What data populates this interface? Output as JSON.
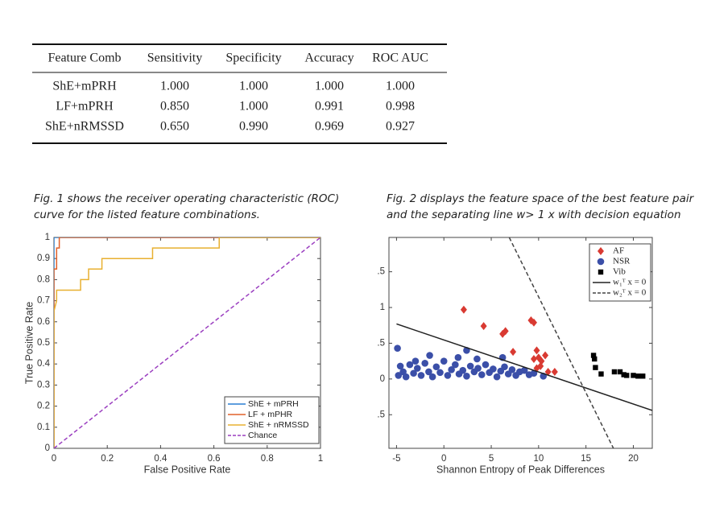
{
  "table": {
    "header": [
      "Feature Comb",
      "Sensitivity",
      "Specificity",
      "Accuracy",
      "ROC AUC"
    ],
    "rows": [
      [
        "ShE+mPRH",
        "1.000",
        "1.000",
        "1.000",
        "1.000"
      ],
      [
        "LF+mPRH",
        "0.850",
        "1.000",
        "0.991",
        "0.998"
      ],
      [
        "ShE+nRMSSD",
        "0.650",
        "0.990",
        "0.969",
        "0.927"
      ]
    ]
  },
  "captions": [
    [
      "Fig. 1 shows the receiver operating characteristic (ROC)",
      "curve for the listed feature combinations."
    ],
    [
      "Fig. 2 displays the feature space of the best feature pair",
      "and the separating line w> 1 x with decision equation"
    ]
  ],
  "chart_data": [
    {
      "type": "line",
      "xlabel": "False Positive Rate",
      "ylabel": "True Positive Rate",
      "xlim": [
        0,
        1
      ],
      "ylim": [
        0,
        1
      ],
      "xticks": [
        0,
        0.2,
        0.4,
        0.6,
        0.8,
        1
      ],
      "yticks": [
        0,
        0.1,
        0.2,
        0.3,
        0.4,
        0.5,
        0.6,
        0.7,
        0.8,
        0.9,
        1
      ],
      "legend": "lower right",
      "series": [
        {
          "name": "ShE + mPRH",
          "color": "#2a7fd4",
          "style": "solid",
          "x": [
            0,
            0,
            0,
            1
          ],
          "y": [
            0,
            0.9,
            1,
            1
          ]
        },
        {
          "name": "LF + mPHR",
          "color": "#e0602a",
          "style": "solid",
          "x": [
            0,
            0,
            0.01,
            0.01,
            0.02,
            0.02,
            1
          ],
          "y": [
            0,
            0.85,
            0.85,
            0.95,
            0.95,
            1,
            1
          ]
        },
        {
          "name": "ShE + nRMSSD",
          "color": "#e8b030",
          "style": "solid",
          "x": [
            0,
            0,
            0.01,
            0.01,
            0.1,
            0.1,
            0.13,
            0.13,
            0.18,
            0.18,
            0.37,
            0.37,
            0.62,
            0.62,
            1
          ],
          "y": [
            0,
            0.65,
            0.7,
            0.75,
            0.75,
            0.8,
            0.8,
            0.85,
            0.85,
            0.9,
            0.9,
            0.95,
            0.95,
            1,
            1
          ]
        },
        {
          "name": "Chance",
          "color": "#9b3fc0",
          "style": "dashed",
          "x": [
            0,
            1
          ],
          "y": [
            0,
            1
          ]
        }
      ]
    },
    {
      "type": "scatter",
      "xlabel": "Shannon Entropy of Peak Differences",
      "xlim": [
        -5.8,
        22
      ],
      "ylim": [
        -0.97,
        1.98
      ],
      "xticks": [
        -5,
        0,
        5,
        10,
        15,
        20
      ],
      "yticks": [
        {
          "value": -0.5,
          "label": ".5"
        },
        0,
        {
          "value": 0.5,
          "label": ".5"
        },
        1,
        {
          "value": 1.5,
          "label": ".5"
        }
      ],
      "legend": "upper right",
      "series": [
        {
          "name": "AF",
          "color": "#d93a32",
          "marker": "diamond",
          "x": [
            2.1,
            4.2,
            6.2,
            6.5,
            7.3,
            9.2,
            9.5,
            9.5,
            9.8,
            10,
            10.3,
            10.7,
            10.2,
            9.8,
            11,
            11.7
          ],
          "y": [
            0.97,
            0.74,
            0.63,
            0.67,
            0.38,
            0.82,
            0.79,
            0.28,
            0.4,
            0.3,
            0.25,
            0.33,
            0.18,
            0.15,
            0.1,
            0.1
          ]
        },
        {
          "name": "NSR",
          "color": "#3b4fa8",
          "marker": "circle",
          "x": [
            -4.8,
            -4.6,
            -4.3,
            -4,
            -3.6,
            -3.2,
            -2.8,
            -2.4,
            -2,
            -1.6,
            -1.2,
            -0.8,
            -0.4,
            0,
            0.4,
            0.8,
            1.2,
            1.6,
            2,
            2.4,
            2.8,
            3.2,
            3.6,
            4,
            4.4,
            4.8,
            5.2,
            5.6,
            6,
            6.4,
            6.8,
            7.2,
            7.6,
            8,
            8.5,
            9,
            9.5,
            10.5,
            -4.9,
            -1.5,
            1.5,
            3.5,
            6.2,
            -3,
            2.4
          ],
          "y": [
            0.05,
            0.18,
            0.1,
            0.03,
            0.2,
            0.08,
            0.15,
            0.05,
            0.22,
            0.1,
            0.03,
            0.17,
            0.09,
            0.25,
            0.05,
            0.13,
            0.2,
            0.07,
            0.12,
            0.04,
            0.18,
            0.1,
            0.15,
            0.06,
            0.2,
            0.09,
            0.14,
            0.03,
            0.11,
            0.17,
            0.07,
            0.13,
            0.05,
            0.1,
            0.12,
            0.06,
            0.08,
            0.04,
            0.43,
            0.33,
            0.3,
            0.28,
            0.3,
            0.25,
            0.4
          ]
        },
        {
          "name": "Vib",
          "color": "#000000",
          "marker": "square",
          "x": [
            15.8,
            15.9,
            16,
            16.6,
            18,
            18.6,
            19,
            19.3,
            20,
            20.5,
            21
          ],
          "y": [
            0.33,
            0.28,
            0.16,
            0.07,
            0.1,
            0.1,
            0.06,
            0.05,
            0.05,
            0.04,
            0.04
          ]
        },
        {
          "name": "w₁ᵀ x = 0",
          "color": "#222222",
          "style": "solid",
          "x": [
            -5,
            22
          ],
          "y": [
            0.77,
            -0.44
          ]
        },
        {
          "name": "w₂ᵀ x = 0",
          "color": "#444444",
          "style": "dashed",
          "x": [
            6.9,
            17.9
          ],
          "y": [
            1.98,
            -0.97
          ]
        }
      ]
    }
  ]
}
